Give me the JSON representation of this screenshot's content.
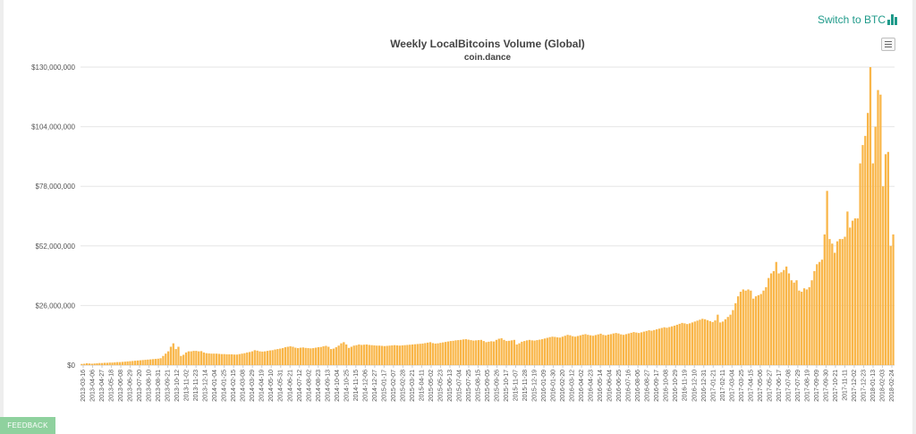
{
  "header": {
    "switch_label": "Switch to BTC"
  },
  "icons": {
    "switch": "bar-chart-icon",
    "menu": "hamburger-menu-icon"
  },
  "feedback": {
    "label": "FEEDBACK"
  },
  "colors": {
    "bar": "#f9b649",
    "accent": "#1f9a8a",
    "feedback": "#8fd19e",
    "grid": "#e6e6e6"
  },
  "chart_data": {
    "type": "bar",
    "title": "Weekly LocalBitcoins Volume (Global)",
    "subtitle": "coin.dance",
    "xlabel": "",
    "ylabel": "",
    "ylim": [
      0,
      130000000
    ],
    "grid": true,
    "legend": "none",
    "y_ticks": [
      "$0",
      "$26,000,000",
      "$52,000,000",
      "$78,000,000",
      "$104,000,000",
      "$130,000,000"
    ],
    "x_ticks": [
      "2013-03-16",
      "2013-04-06",
      "2013-04-27",
      "2013-05-18",
      "2013-06-08",
      "2013-06-29",
      "2013-07-20",
      "2013-08-10",
      "2013-08-31",
      "2013-09-21",
      "2013-10-12",
      "2013-11-02",
      "2013-11-23",
      "2013-12-14",
      "2014-01-04",
      "2014-01-25",
      "2014-02-15",
      "2014-03-08",
      "2014-03-29",
      "2014-04-19",
      "2014-05-10",
      "2014-05-31",
      "2014-06-21",
      "2014-07-12",
      "2014-08-02",
      "2014-08-23",
      "2014-09-13",
      "2014-10-04",
      "2014-10-25",
      "2014-11-15",
      "2014-12-06",
      "2014-12-27",
      "2015-01-17",
      "2015-02-07",
      "2015-02-28",
      "2015-03-21",
      "2015-04-11",
      "2015-05-02",
      "2015-05-23",
      "2015-06-13",
      "2015-07-04",
      "2015-07-25",
      "2015-08-15",
      "2015-09-05",
      "2015-09-26",
      "2015-10-17",
      "2015-11-07",
      "2015-11-28",
      "2015-12-19",
      "2016-01-09",
      "2016-01-30",
      "2016-02-20",
      "2016-03-12",
      "2016-04-02",
      "2016-04-23",
      "2016-05-14",
      "2016-06-04",
      "2016-06-25",
      "2016-07-16",
      "2016-08-06",
      "2016-08-27",
      "2016-09-17",
      "2016-10-08",
      "2016-10-29",
      "2016-11-19",
      "2016-12-10",
      "2016-12-31",
      "2017-01-21",
      "2017-02-11",
      "2017-03-04",
      "2017-03-25",
      "2017-04-15",
      "2017-05-06",
      "2017-05-27",
      "2017-06-17",
      "2017-07-08",
      "2017-07-29",
      "2017-08-19",
      "2017-09-09",
      "2017-09-30",
      "2017-10-21",
      "2017-11-11",
      "2017-12-02",
      "2017-12-23",
      "2018-01-13",
      "2018-02-03",
      "2018-02-24"
    ],
    "values": [
      500000,
      600000,
      800000,
      700000,
      600000,
      700000,
      800000,
      900000,
      900000,
      1000000,
      1000000,
      1100000,
      1100000,
      1200000,
      1300000,
      1300000,
      1400000,
      1500000,
      1600000,
      1700000,
      1800000,
      1900000,
      2000000,
      2100000,
      2200000,
      2300000,
      2400000,
      2500000,
      2600000,
      2700000,
      2800000,
      3000000,
      4000000,
      5000000,
      6000000,
      8000000,
      9500000,
      7000000,
      8000000,
      4000000,
      4500000,
      5500000,
      6000000,
      6000000,
      6200000,
      6200000,
      6000000,
      6100000,
      5500000,
      5200000,
      5100000,
      5000000,
      5000000,
      5000000,
      4900000,
      4800000,
      4800000,
      4700000,
      4700000,
      4700000,
      4600000,
      4600000,
      4800000,
      5000000,
      5200000,
      5500000,
      5700000,
      6000000,
      6500000,
      6300000,
      6000000,
      5900000,
      6000000,
      6200000,
      6400000,
      6500000,
      6800000,
      7000000,
      7200000,
      7400000,
      7800000,
      8000000,
      8200000,
      8000000,
      7600000,
      7400000,
      7600000,
      7700000,
      7500000,
      7400000,
      7300000,
      7400000,
      7600000,
      7800000,
      7900000,
      8200000,
      8400000,
      8000000,
      7000000,
      7200000,
      7800000,
      8500000,
      9500000,
      10000000,
      9000000,
      7500000,
      8000000,
      8500000,
      8700000,
      9000000,
      8800000,
      8900000,
      9000000,
      8800000,
      8700000,
      8600000,
      8500000,
      8500000,
      8400000,
      8300000,
      8400000,
      8500000,
      8600000,
      8700000,
      8600000,
      8500000,
      8600000,
      8700000,
      8800000,
      8900000,
      9000000,
      9100000,
      9200000,
      9300000,
      9400000,
      9600000,
      9800000,
      10000000,
      9600000,
      9400000,
      9500000,
      9700000,
      9900000,
      10100000,
      10300000,
      10500000,
      10600000,
      10800000,
      10900000,
      11000000,
      11200000,
      11300000,
      11100000,
      10900000,
      10700000,
      10800000,
      10900000,
      11000000,
      10500000,
      10000000,
      10200000,
      10400000,
      10300000,
      11000000,
      11500000,
      11700000,
      11000000,
      10500000,
      10600000,
      10800000,
      11000000,
      9000000,
      9500000,
      10200000,
      10500000,
      10800000,
      11000000,
      10800000,
      10700000,
      10900000,
      11100000,
      11300000,
      11600000,
      11900000,
      12200000,
      12400000,
      12300000,
      12100000,
      12000000,
      12400000,
      12800000,
      13200000,
      13000000,
      12600000,
      12400000,
      12700000,
      13000000,
      13300000,
      13500000,
      13200000,
      13000000,
      12800000,
      13100000,
      13400000,
      13700000,
      13200000,
      13000000,
      13300000,
      13500000,
      13800000,
      14000000,
      13800000,
      13400000,
      13200000,
      13500000,
      13800000,
      14100000,
      14400000,
      14200000,
      14000000,
      14300000,
      14600000,
      14900000,
      15200000,
      15000000,
      15300000,
      15600000,
      15900000,
      16200000,
      16500000,
      16300000,
      16600000,
      16900000,
      17200000,
      17600000,
      18000000,
      18400000,
      18200000,
      17900000,
      18200000,
      18600000,
      19000000,
      19400000,
      19800000,
      20200000,
      20000000,
      19600000,
      19200000,
      18800000,
      19500000,
      22000000,
      18600000,
      19000000,
      20000000,
      21000000,
      22000000,
      24000000,
      27000000,
      30000000,
      32000000,
      33000000,
      32500000,
      33000000,
      32500000,
      29000000,
      30000000,
      30500000,
      31000000,
      32500000,
      34000000,
      38000000,
      40000000,
      41000000,
      45000000,
      40000000,
      40500000,
      41500000,
      43000000,
      40000000,
      37000000,
      36000000,
      37000000,
      32500000,
      32000000,
      33500000,
      33000000,
      34000000,
      37000000,
      41000000,
      44000000,
      45000000,
      46000000,
      57000000,
      76000000,
      55000000,
      53000000,
      49000000,
      54000000,
      55000000,
      55000000,
      56000000,
      67000000,
      60000000,
      63000000,
      64000000,
      64000000,
      88000000,
      96000000,
      100000000,
      110000000,
      130000000,
      88000000,
      104000000,
      120000000,
      118000000,
      78000000,
      92000000,
      93000000,
      52000000,
      57000000
    ]
  }
}
